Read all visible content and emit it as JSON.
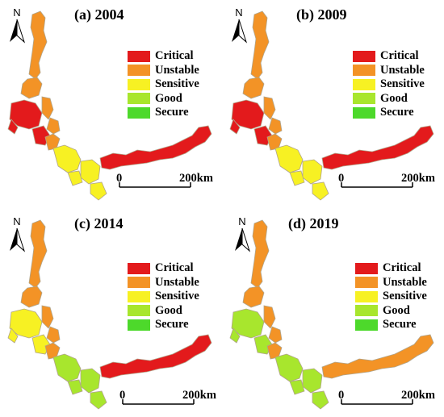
{
  "legend": [
    {
      "label": "Critical",
      "color": "#e31a1c"
    },
    {
      "label": "Unstable",
      "color": "#f39326"
    },
    {
      "label": "Sensitive",
      "color": "#f7f123"
    },
    {
      "label": "Good",
      "color": "#a8e62d"
    },
    {
      "label": "Secure",
      "color": "#4dd92b"
    }
  ],
  "north_label": "N",
  "scale": {
    "zero": "0",
    "end": "200",
    "unit": "km"
  },
  "panels": [
    {
      "title": "(a) 2004",
      "north_color": "#000000",
      "region_colors": {
        "north": "#f39326",
        "northwest": "#e31a1c",
        "west": "#f39326",
        "south": "#f7f123",
        "east": "#e31a1c"
      }
    },
    {
      "title": "(b) 2009",
      "north_color": "#000000",
      "region_colors": {
        "north": "#f39326",
        "northwest": "#e31a1c",
        "west": "#f39326",
        "south": "#f7f123",
        "east": "#e31a1c"
      }
    },
    {
      "title": "(c) 2014",
      "north_color": "#000000",
      "region_colors": {
        "north": "#f39326",
        "northwest": "#f7f123",
        "west": "#f39326",
        "south": "#a8e62d",
        "east": "#e31a1c"
      }
    },
    {
      "title": "(d) 2019",
      "north_color": "#000000",
      "region_colors": {
        "north": "#f39326",
        "northwest": "#a8e62d",
        "west": "#f39326",
        "south": "#a8e62d",
        "east": "#f39326"
      }
    }
  ]
}
